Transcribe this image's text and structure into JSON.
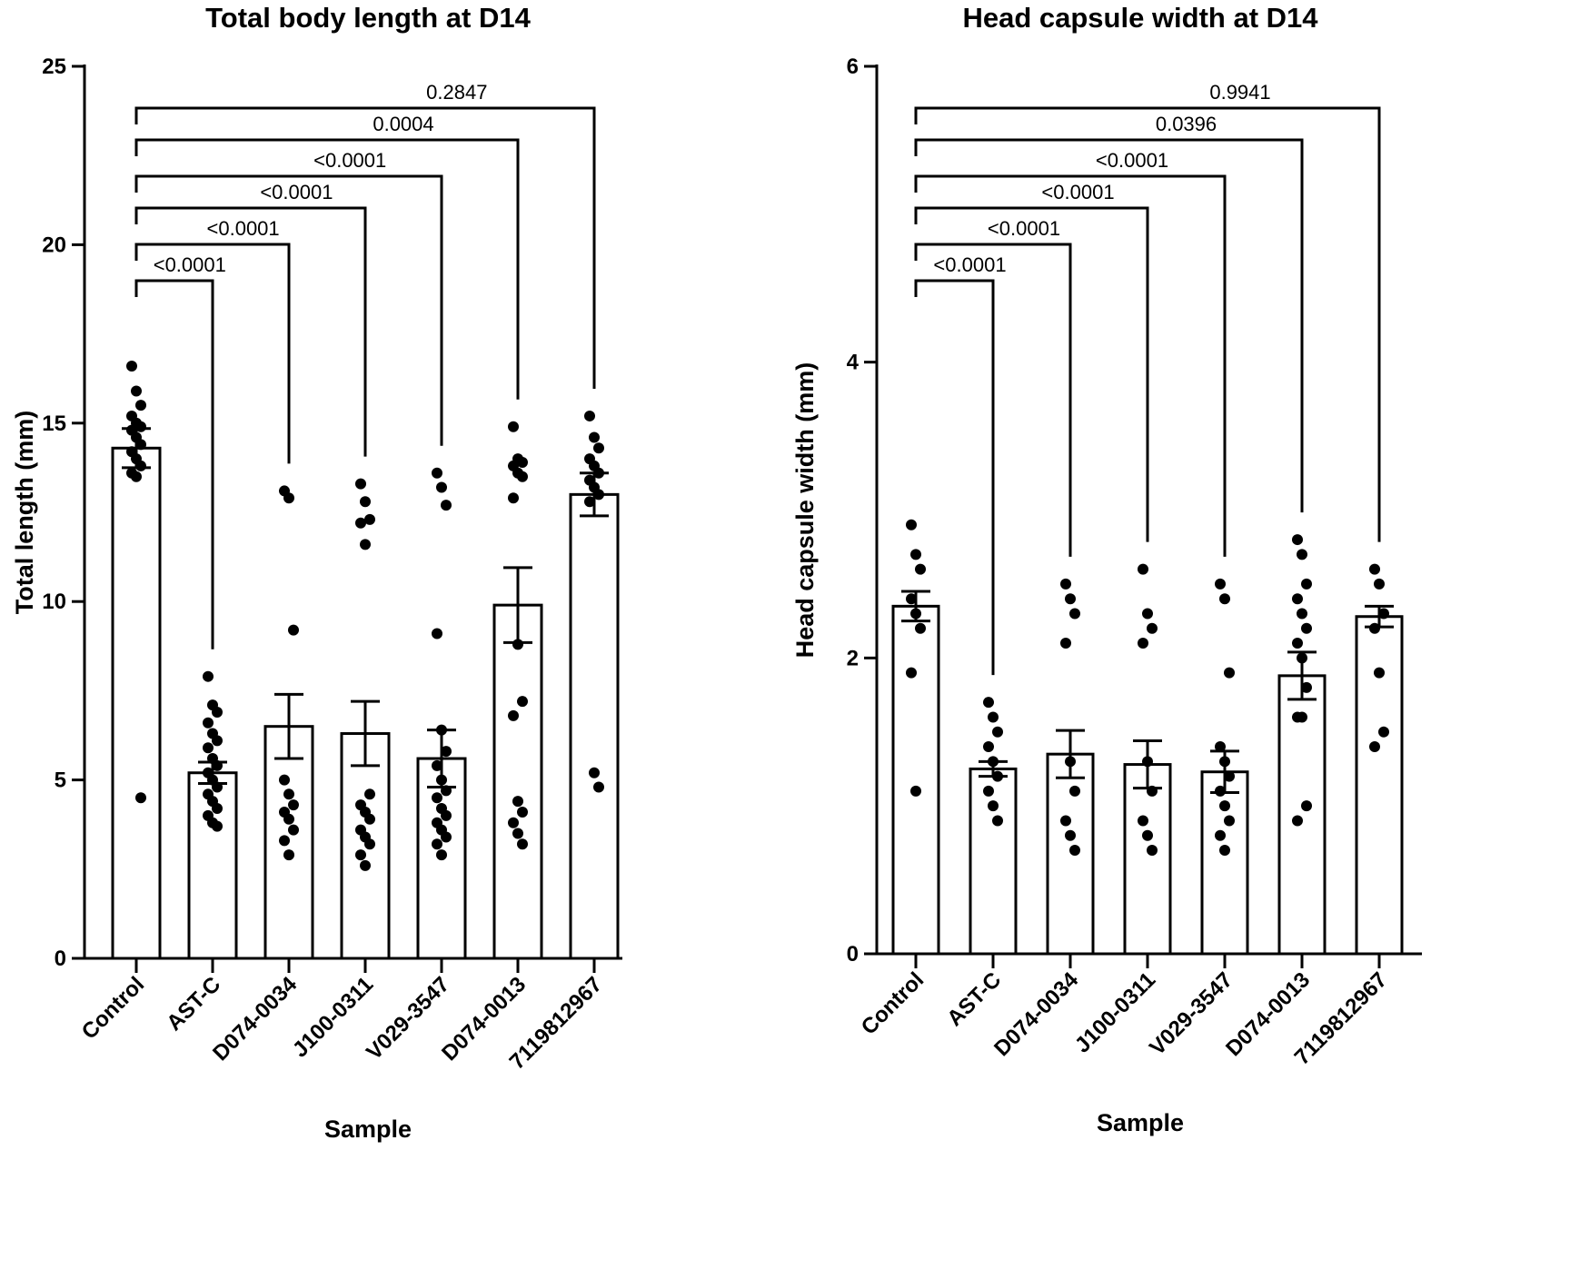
{
  "chart_data": [
    {
      "type": "bar",
      "title": "Total body length at D14",
      "xlabel": "Sample",
      "ylabel": "Total length  (mm)",
      "ylim": [
        0,
        25
      ],
      "yticks": [
        0,
        5,
        10,
        15,
        20,
        25
      ],
      "categories": [
        "Control",
        "AST-C",
        "D074-0034",
        "J100-0311",
        "V029-3547",
        "D074-0013",
        "7119812967"
      ],
      "values": [
        14.3,
        5.2,
        6.5,
        6.3,
        5.6,
        9.9,
        13.0
      ],
      "error": [
        0.55,
        0.3,
        0.9,
        0.9,
        0.8,
        1.05,
        0.6
      ],
      "points": [
        [
          16.6,
          15.9,
          15.5,
          15.2,
          15.0,
          14.9,
          14.8,
          14.6,
          14.4,
          14.2,
          14.0,
          13.8,
          13.6,
          13.5,
          4.5
        ],
        [
          7.9,
          7.1,
          6.9,
          6.6,
          6.3,
          6.1,
          5.9,
          5.6,
          5.4,
          5.2,
          5.0,
          4.8,
          4.6,
          4.4,
          4.2,
          4.0,
          3.8,
          3.7
        ],
        [
          13.1,
          12.9,
          9.2,
          5.0,
          4.6,
          4.3,
          4.1,
          3.9,
          3.6,
          3.3,
          2.9
        ],
        [
          13.3,
          12.8,
          12.3,
          12.2,
          11.6,
          4.6,
          4.3,
          4.1,
          3.9,
          3.6,
          3.4,
          3.2,
          2.9,
          2.6
        ],
        [
          13.6,
          13.2,
          12.7,
          9.1,
          6.4,
          5.8,
          5.4,
          5.0,
          4.7,
          4.5,
          4.2,
          4.0,
          3.8,
          3.6,
          3.4,
          3.2,
          2.9
        ],
        [
          14.9,
          14.0,
          13.9,
          13.8,
          13.6,
          13.5,
          12.9,
          8.8,
          7.2,
          6.8,
          4.4,
          4.1,
          3.8,
          3.5,
          3.2
        ],
        [
          15.2,
          14.6,
          14.3,
          14.0,
          13.8,
          13.6,
          13.4,
          13.2,
          13.0,
          12.8,
          5.2,
          4.8
        ]
      ],
      "comparisons": [
        {
          "target": "AST-C",
          "p": "<0.0001"
        },
        {
          "target": "D074-0034",
          "p": "<0.0001"
        },
        {
          "target": "J100-0311",
          "p": "<0.0001"
        },
        {
          "target": "V029-3547",
          "p": "<0.0001"
        },
        {
          "target": "D074-0013",
          "p": "0.0004"
        },
        {
          "target": "7119812967",
          "p": "0.2847"
        }
      ]
    },
    {
      "type": "bar",
      "title": "Head capsule width at D14",
      "xlabel": "Sample",
      "ylabel": "Head capsule width  (mm)",
      "ylim": [
        0,
        6
      ],
      "yticks": [
        0,
        2,
        4,
        6
      ],
      "categories": [
        "Control",
        "AST-C",
        "D074-0034",
        "J100-0311",
        "V029-3547",
        "D074-0013",
        "7119812967"
      ],
      "values": [
        2.35,
        1.25,
        1.35,
        1.28,
        1.23,
        1.88,
        2.28
      ],
      "error": [
        0.1,
        0.05,
        0.16,
        0.16,
        0.14,
        0.16,
        0.07
      ],
      "points": [
        [
          2.9,
          2.7,
          2.6,
          2.4,
          2.3,
          2.2,
          1.9,
          1.1
        ],
        [
          1.7,
          1.6,
          1.5,
          1.4,
          1.3,
          1.2,
          1.1,
          1.0,
          0.9
        ],
        [
          2.5,
          2.4,
          2.3,
          2.1,
          1.3,
          1.1,
          0.9,
          0.8,
          0.7
        ],
        [
          2.6,
          2.3,
          2.2,
          2.1,
          1.3,
          1.1,
          0.9,
          0.8,
          0.7
        ],
        [
          2.5,
          2.4,
          1.9,
          1.4,
          1.3,
          1.2,
          1.1,
          1.0,
          0.9,
          0.8,
          0.7
        ],
        [
          2.8,
          2.7,
          2.5,
          2.4,
          2.3,
          2.2,
          2.1,
          2.0,
          1.8,
          1.6,
          1.6,
          1.0,
          0.9
        ],
        [
          2.6,
          2.5,
          2.3,
          2.2,
          1.9,
          1.5,
          1.4
        ]
      ],
      "comparisons": [
        {
          "target": "AST-C",
          "p": "<0.0001"
        },
        {
          "target": "D074-0034",
          "p": "<0.0001"
        },
        {
          "target": "J100-0311",
          "p": "<0.0001"
        },
        {
          "target": "V029-3547",
          "p": "<0.0001"
        },
        {
          "target": "D074-0013",
          "p": "0.0396"
        },
        {
          "target": "7119812967",
          "p": "0.9941"
        }
      ]
    }
  ]
}
